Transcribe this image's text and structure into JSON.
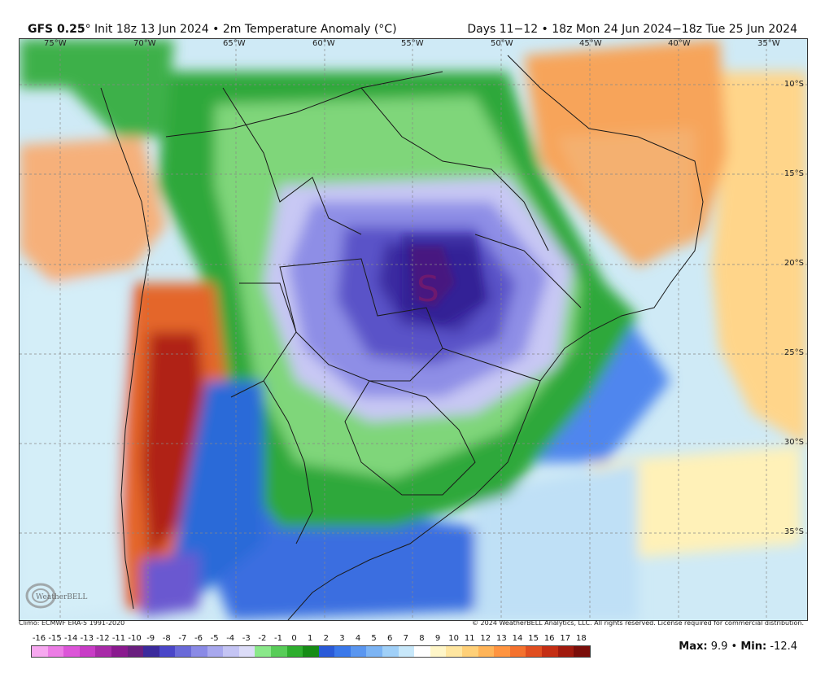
{
  "header": {
    "model": "GFS 0.25",
    "degree": "°",
    "init": "Init 18z 13 Jun 2024",
    "bullet1": "•",
    "variable": "2m Temperature Anomaly (°C)",
    "valid": "Days 11−12 • 18z Mon 24 Jun 2024−18z Tue 25 Jun 2024"
  },
  "map": {
    "lon_labels": [
      "75°W",
      "70°W",
      "65°W",
      "60°W",
      "55°W",
      "50°W",
      "45°W",
      "40°W",
      "35°W"
    ],
    "lat_labels": [
      "10°S",
      "15°S",
      "20°S",
      "25°S",
      "30°S",
      "35°S"
    ]
  },
  "footer": {
    "climo": "Climo: ECMWF ERA-5 1991-2020",
    "copyright": "© 2024 WeatherBELL Analytics, LLC. All rights reserved. License required for commercial distribution.",
    "logo_text": "WeatherBELL"
  },
  "legend": {
    "labels": [
      "-16",
      "-15",
      "-14",
      "-13",
      "-12",
      "-11",
      "-10",
      "-9",
      "-8",
      "-7",
      "-6",
      "-5",
      "-4",
      "-3",
      "-2",
      "-1",
      "0",
      "1",
      "2",
      "3",
      "4",
      "5",
      "6",
      "7",
      "8",
      "9",
      "10",
      "11",
      "12",
      "13",
      "14",
      "15",
      "16",
      "17",
      "18"
    ],
    "colors": [
      "#f7a8f0",
      "#ec7ce5",
      "#dc55d8",
      "#c83cc6",
      "#a82aa8",
      "#8a1a8f",
      "#5a2a9a",
      "#4a3fb8",
      "#6a62d8",
      "#9090ea",
      "#b8b8f4",
      "#d8d8fa",
      "#e6e6fc",
      "#1a8c1a",
      "#2ca82c",
      "#4cc44c",
      "#7ad87a",
      "#a8eca8",
      "#2a5ad8",
      "#4a82ec",
      "#74a8f4",
      "#a0c8f8",
      "#c8e4fa",
      "#ffffff",
      "#fff4c0",
      "#ffe08a",
      "#ffc060",
      "#ff9a40",
      "#f26a2a",
      "#d83a1a",
      "#b01a10",
      "#8a0a0a",
      "#6a1a10",
      "#8a5a4a",
      "#b08a7a"
    ],
    "cells": [
      "#f7a8f0",
      "#ec7ce5",
      "#dc55d8",
      "#c83cc6",
      "#a82aa8",
      "#8a1a8f",
      "#6a1f7f",
      "#3b2a9c",
      "#4a46c8",
      "#6a6ad8",
      "#8a8ae6",
      "#a8a8ee",
      "#c4c4f4",
      "#dcdcf8",
      "#8ae88a",
      "#58cc58",
      "#2eae2e",
      "#168c16",
      "#2a5ad8",
      "#3a78ea",
      "#5a96f0",
      "#7cb4f4",
      "#a0d0f8",
      "#c8e8fa",
      "#ffffff",
      "#fff6c8",
      "#ffe6a0",
      "#ffd078",
      "#ffb458",
      "#ff9440",
      "#f4722e",
      "#e04e20",
      "#c42e14",
      "#a01a0e",
      "#7a0e0a"
    ],
    "max_label": "Max:",
    "max_value": "9.9",
    "sep": "•",
    "min_label": "Min:",
    "min_value": "-12.4"
  }
}
